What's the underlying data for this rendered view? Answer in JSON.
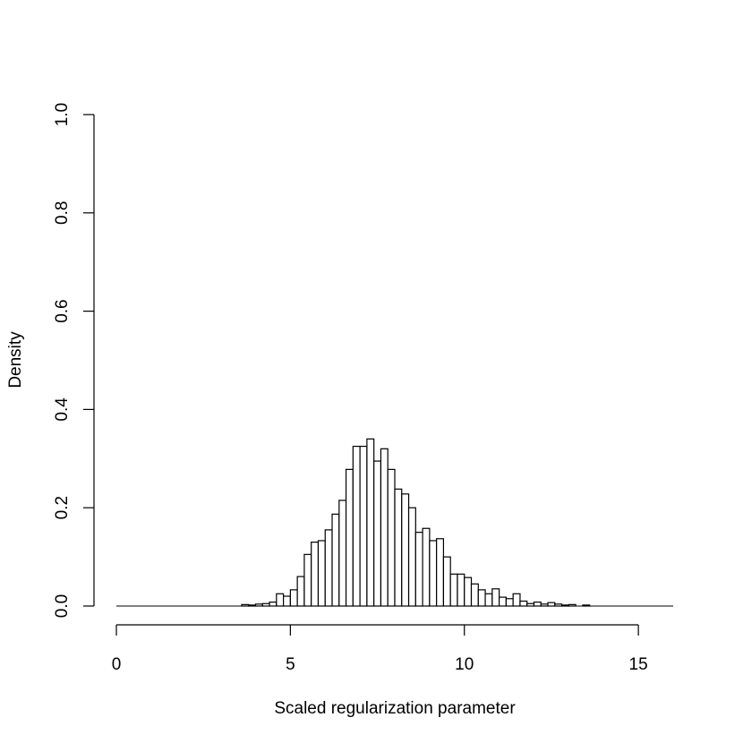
{
  "chart_data": {
    "type": "bar",
    "xlabel": "Scaled regularization parameter",
    "ylabel": "Density",
    "xlim": [
      0,
      16
    ],
    "ylim": [
      0,
      1
    ],
    "xticks": [
      "0",
      "5",
      "10",
      "15"
    ],
    "yticks": [
      "0.0",
      "0.2",
      "0.4",
      "0.6",
      "0.8",
      "1.0"
    ],
    "bin_width": 0.2,
    "bin_start": 0,
    "values": [
      0,
      0,
      0,
      0,
      0,
      0,
      0,
      0,
      0,
      0,
      0,
      0,
      0,
      0,
      0,
      0,
      0,
      0,
      0.003,
      0.002,
      0.004,
      0.005,
      0.008,
      0.025,
      0.02,
      0.033,
      0.06,
      0.105,
      0.13,
      0.133,
      0.155,
      0.187,
      0.215,
      0.278,
      0.325,
      0.325,
      0.34,
      0.295,
      0.32,
      0.278,
      0.238,
      0.228,
      0.2,
      0.15,
      0.158,
      0.133,
      0.137,
      0.1,
      0.065,
      0.065,
      0.058,
      0.045,
      0.033,
      0.025,
      0.035,
      0.018,
      0.015,
      0.025,
      0.01,
      0.005,
      0.008,
      0.004,
      0.007,
      0.004,
      0.002,
      0.003,
      0,
      0.002,
      0,
      0,
      0,
      0,
      0,
      0,
      0,
      0,
      0,
      0,
      0,
      0
    ],
    "grid": false,
    "legend": "none"
  }
}
